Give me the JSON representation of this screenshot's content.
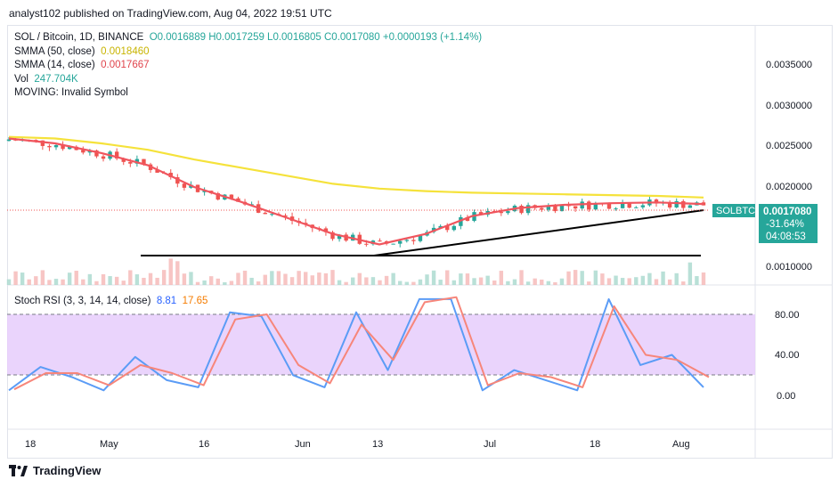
{
  "header": {
    "caption": "analyst102 published on TradingView.com, Aug 04, 2022 19:51 UTC"
  },
  "legend": {
    "symbol": "SOL / Bitcoin, 1D, BINANCE",
    "ohlc": "O0.0016889 H0.0017259 L0.0016805 C0.0017080 +0.0000193 (+1.14%)",
    "sma50_label": "SMMA (50, close)",
    "sma50_value": "0.0018460",
    "sma14_label": "SMMA (14, close)",
    "sma14_value": "0.0017667",
    "vol_label": "Vol",
    "vol_value": "247.704K",
    "moving_label": "MOVING: Invalid Symbol"
  },
  "price_tag": {
    "symbol": "SOLBTC",
    "price": "0.0017080",
    "change": "-31.64%",
    "countdown": "04:08:53"
  },
  "stoch_legend": {
    "label": "Stoch RSI (3, 3, 14, 14, close)",
    "k": "8.81",
    "d": "17.65"
  },
  "footer": {
    "brand": "TradingView"
  },
  "colors": {
    "up": "#26a69a",
    "down": "#ef5350",
    "sma50": "#f5e23b",
    "sma14": "#f0555e",
    "stoch_k": "#5b9cf6",
    "stoch_d": "#f7867a",
    "band": "#e6cdfb"
  },
  "chart_data": [
    {
      "type": "candlestick",
      "title": "SOL / Bitcoin, 1D, BINANCE",
      "y_ticks": [
        "0.0035000",
        "0.0030000",
        "0.0025000",
        "0.0020000",
        "0.0010000"
      ],
      "x_ticks": [
        "18",
        "May",
        "16",
        "Jun",
        "13",
        "Jul",
        "18",
        "Aug"
      ],
      "series": [
        {
          "name": "SMMA (50, close)",
          "values": [
            0.0026,
            0.00258,
            0.00252,
            0.00244,
            0.00232,
            0.00222,
            0.00212,
            0.00202,
            0.00196,
            0.00193,
            0.00191,
            0.0019,
            0.00189,
            0.00188,
            0.00187,
            0.00185
          ]
        },
        {
          "name": "SMMA (14, close)",
          "values": [
            0.00258,
            0.00252,
            0.0024,
            0.00225,
            0.00198,
            0.0018,
            0.0016,
            0.0014,
            0.00127,
            0.0014,
            0.00162,
            0.00172,
            0.00176,
            0.00178,
            0.00179,
            0.00177
          ]
        }
      ],
      "support_level": 0.00116,
      "trendline": [
        0.00116,
        0.0017
      ]
    },
    {
      "type": "line",
      "title": "Stoch RSI (3, 3, 14, 14, close)",
      "y_ticks": [
        "80.00",
        "40.00",
        "0.00"
      ],
      "band": [
        20,
        80
      ],
      "series": [
        {
          "name": "K",
          "values": [
            5,
            28,
            18,
            5,
            38,
            15,
            8,
            82,
            78,
            20,
            8,
            82,
            25,
            95,
            95,
            5,
            25,
            15,
            5,
            95,
            30,
            40,
            8
          ]
        },
        {
          "name": "D",
          "values": [
            6,
            22,
            22,
            10,
            30,
            22,
            10,
            75,
            80,
            30,
            12,
            70,
            35,
            92,
            97,
            10,
            22,
            18,
            8,
            88,
            40,
            35,
            18
          ]
        }
      ]
    }
  ]
}
